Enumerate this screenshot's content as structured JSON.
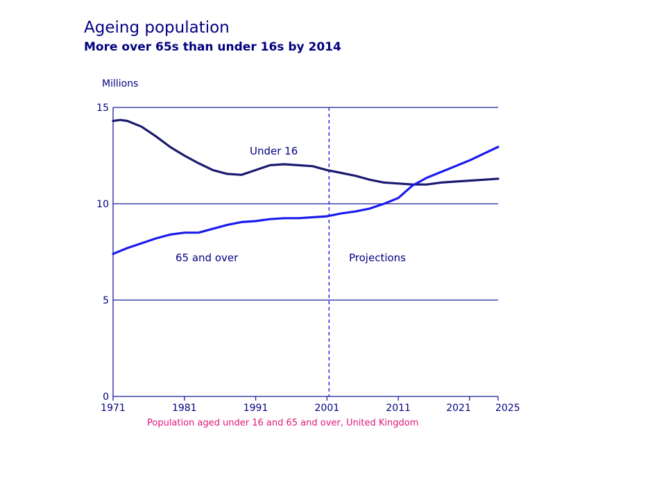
{
  "chart_data": {
    "type": "line",
    "title": "Ageing population",
    "subtitle": "More over 65s than under 16s by 2014",
    "ylabel": "Millions",
    "xlabel": "",
    "source": "Population aged under 16 and 65 and over, United Kingdom",
    "xlim": [
      1971,
      2025
    ],
    "ylim": [
      0,
      15
    ],
    "x_ticks": [
      "1971",
      "1981",
      "1991",
      "2001",
      "2011",
      "2021",
      "2025"
    ],
    "y_ticks": [
      "0",
      "5",
      "10",
      "15"
    ],
    "grid": "horizontal",
    "projection_start": 2001,
    "annotations": {
      "projections": "Projections",
      "under16": "Under 16",
      "over65": "65 and over"
    },
    "series": [
      {
        "name": "Under 16",
        "color": "#1a1a6e",
        "x": [
          1971,
          1972,
          1973,
          1975,
          1977,
          1979,
          1981,
          1983,
          1985,
          1987,
          1989,
          1991,
          1993,
          1995,
          1997,
          1999,
          2001,
          2003,
          2005,
          2007,
          2009,
          2011,
          2013,
          2015,
          2017,
          2019,
          2021,
          2023,
          2025
        ],
        "values": [
          14.3,
          14.35,
          14.3,
          14.0,
          13.5,
          12.95,
          12.5,
          12.1,
          11.75,
          11.55,
          11.5,
          11.75,
          12.0,
          12.05,
          12.0,
          11.95,
          11.75,
          11.6,
          11.45,
          11.25,
          11.1,
          11.05,
          11.0,
          11.0,
          11.1,
          11.15,
          11.2,
          11.25,
          11.3
        ]
      },
      {
        "name": "65 and over",
        "color": "#1a1aee",
        "x": [
          1971,
          1973,
          1975,
          1977,
          1979,
          1981,
          1983,
          1985,
          1987,
          1989,
          1991,
          1993,
          1995,
          1997,
          1999,
          2001,
          2003,
          2005,
          2007,
          2009,
          2011,
          2013,
          2015,
          2017,
          2019,
          2021,
          2023,
          2025
        ],
        "values": [
          7.4,
          7.7,
          7.95,
          8.2,
          8.4,
          8.5,
          8.5,
          8.7,
          8.9,
          9.05,
          9.1,
          9.2,
          9.25,
          9.25,
          9.3,
          9.35,
          9.5,
          9.6,
          9.75,
          10.0,
          10.3,
          10.95,
          11.35,
          11.65,
          11.95,
          12.25,
          12.6,
          12.95
        ]
      }
    ],
    "colors": {
      "axis": "#000080",
      "grid": "#1a1a99",
      "source": "#e0157a"
    }
  }
}
